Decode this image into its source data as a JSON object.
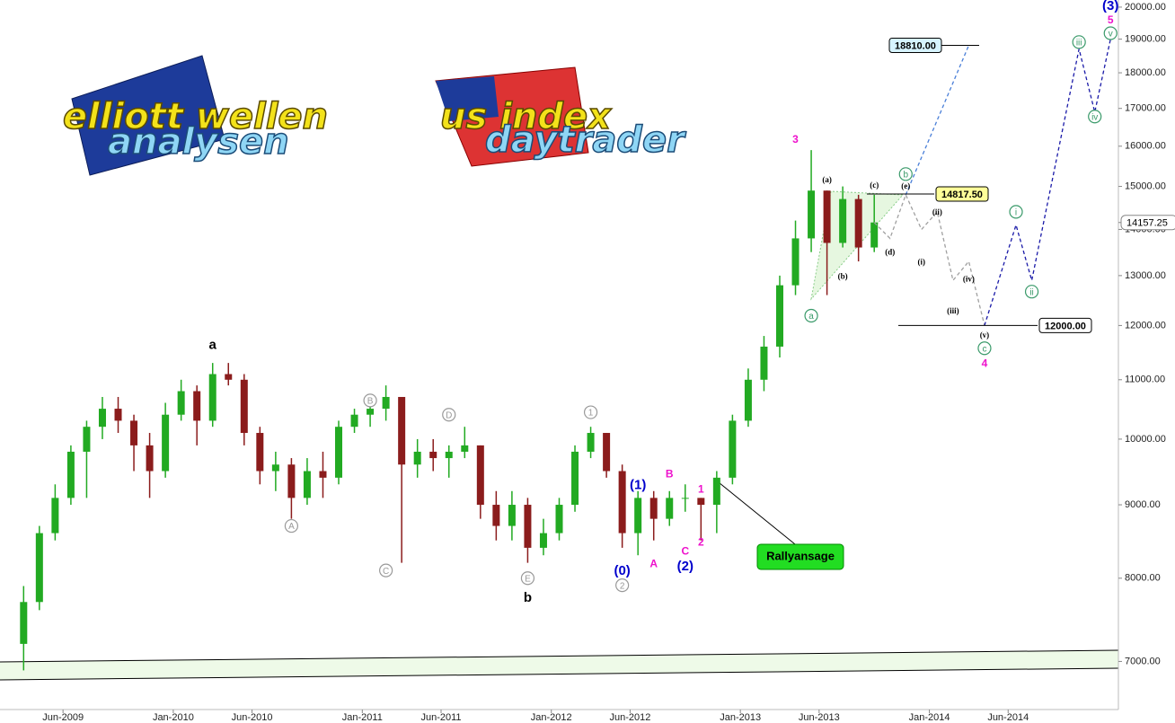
{
  "chart_data": {
    "type": "candlestick",
    "logos": [
      "elliott wellen",
      "analysen",
      "us index",
      "daytrader"
    ],
    "log_scale": true,
    "up_color": "#22aa22",
    "down_color": "#8b1c1c",
    "xlim": [
      "2009-02",
      "2015-01"
    ],
    "xticks": [
      {
        "value": "2009-06",
        "label": "Jun-2009"
      },
      {
        "value": "2010-01",
        "label": "Jan-2010"
      },
      {
        "value": "2010-06",
        "label": "Jun-2010"
      },
      {
        "value": "2011-01",
        "label": "Jan-2011"
      },
      {
        "value": "2011-06",
        "label": "Jun-2011"
      },
      {
        "value": "2012-01",
        "label": "Jan-2012"
      },
      {
        "value": "2012-06",
        "label": "Jun-2012"
      },
      {
        "value": "2013-01",
        "label": "Jan-2013"
      },
      {
        "value": "2013-06",
        "label": "Jun-2013"
      },
      {
        "value": "2014-01",
        "label": "Jan-2014"
      },
      {
        "value": "2014-06",
        "label": "Jun-2014"
      }
    ],
    "ylim": [
      6480,
      20230
    ],
    "yticks": [
      {
        "value": 7000,
        "label": "7000.00"
      },
      {
        "value": 8000,
        "label": "8000.00"
      },
      {
        "value": 9000,
        "label": "9000.00"
      },
      {
        "value": 10000,
        "label": "10000.00"
      },
      {
        "value": 11000,
        "label": "11000.00"
      },
      {
        "value": 12000,
        "label": "12000.00"
      },
      {
        "value": 13000,
        "label": "13000.00"
      },
      {
        "value": 14000,
        "label": "14000.00"
      },
      {
        "value": 15000,
        "label": "15000.00"
      },
      {
        "value": 16000,
        "label": "16000.00"
      },
      {
        "value": 17000,
        "label": "17000.00"
      },
      {
        "value": 18000,
        "label": "18000.00"
      },
      {
        "value": 19000,
        "label": "19000.00"
      },
      {
        "value": 20000,
        "label": "20000.00"
      }
    ],
    "x": [
      "2009-03",
      "2009-04",
      "2009-05",
      "2009-06",
      "2009-07",
      "2009-08",
      "2009-09",
      "2009-10",
      "2009-11",
      "2009-12",
      "2010-01",
      "2010-02",
      "2010-03",
      "2010-04",
      "2010-05",
      "2010-06",
      "2010-07",
      "2010-08",
      "2010-09",
      "2010-10",
      "2010-11",
      "2010-12",
      "2011-01",
      "2011-02",
      "2011-03",
      "2011-04",
      "2011-05",
      "2011-06",
      "2011-07",
      "2011-08",
      "2011-09",
      "2011-10",
      "2011-11",
      "2011-12",
      "2012-01",
      "2012-02",
      "2012-03",
      "2012-04",
      "2012-05",
      "2012-06",
      "2012-07",
      "2012-08",
      "2012-09",
      "2012-10",
      "2012-11",
      "2012-12",
      "2013-01",
      "2013-02",
      "2013-03",
      "2013-04",
      "2013-05",
      "2013-06",
      "2013-07",
      "2013-08",
      "2013-09"
    ],
    "open": [
      7200,
      7700,
      8600,
      9100,
      9800,
      10200,
      10500,
      10300,
      9900,
      9500,
      10400,
      10800,
      10300,
      11100,
      11000,
      10100,
      9500,
      9600,
      9100,
      9500,
      9400,
      10200,
      10400,
      10500,
      10700,
      9600,
      9800,
      9700,
      9800,
      9900,
      9000,
      8700,
      9000,
      8400,
      8600,
      9000,
      9800,
      10100,
      9500,
      8600,
      9100,
      8800,
      9100,
      9100,
      9000,
      9400,
      10300,
      11000,
      11600,
      12800,
      13800,
      14900,
      13700,
      14700,
      13600
    ],
    "high": [
      7900,
      8700,
      9300,
      9900,
      10300,
      10700,
      10700,
      10400,
      10100,
      10600,
      11000,
      10900,
      11300,
      11300,
      11100,
      10200,
      9800,
      9700,
      9700,
      9800,
      10300,
      10500,
      10600,
      10900,
      10700,
      10000,
      10000,
      9900,
      10200,
      9900,
      9200,
      9200,
      9100,
      8800,
      9100,
      9900,
      10200,
      10100,
      9600,
      9200,
      9200,
      9200,
      9300,
      9100,
      9500,
      10400,
      11200,
      11800,
      13000,
      14200,
      15900,
      14900,
      15000,
      14800,
      14800
    ],
    "low": [
      6900,
      7600,
      8500,
      9000,
      9100,
      10000,
      10100,
      9500,
      9100,
      9400,
      10300,
      9900,
      10200,
      10900,
      9900,
      9300,
      9200,
      8800,
      9000,
      9100,
      9300,
      10100,
      10200,
      10300,
      8200,
      9400,
      9500,
      9400,
      9700,
      8800,
      8500,
      8500,
      8200,
      8300,
      8500,
      8900,
      9700,
      9400,
      8400,
      8300,
      8500,
      8700,
      8900,
      8500,
      8600,
      9300,
      10200,
      10800,
      11400,
      12600,
      13500,
      12600,
      13600,
      13300,
      13500
    ],
    "close": [
      7700,
      8600,
      9100,
      9800,
      10200,
      10500,
      10300,
      9900,
      9500,
      10400,
      10800,
      10300,
      11100,
      11000,
      10100,
      9500,
      9600,
      9100,
      9500,
      9400,
      10200,
      10400,
      10500,
      10700,
      9600,
      9800,
      9700,
      9800,
      9900,
      9000,
      8700,
      9000,
      8400,
      8600,
      9000,
      9800,
      10100,
      9500,
      8600,
      9100,
      8800,
      9100,
      9100,
      9000,
      9400,
      10300,
      11000,
      11600,
      12800,
      13800,
      14900,
      13700,
      14700,
      13600,
      14157.25
    ],
    "last_price": 14157.25,
    "projections": [
      {
        "color": "#a0a0a0",
        "x": [
          "2013-09",
          "2013-10",
          "2013-11",
          "2013-12",
          "2014-01",
          "2014-02",
          "2014-03",
          "2014-04"
        ],
        "values": [
          14157.25,
          13800,
          14800,
          14000,
          14400,
          12900,
          13300,
          12000
        ]
      },
      {
        "color": "#1a1aa8",
        "x": [
          "2014-04",
          "2014-06",
          "2014-07",
          "2014-10",
          "2014-11",
          "2014-12"
        ],
        "values": [
          12000,
          14100,
          12900,
          18700,
          16900,
          19000
        ]
      },
      {
        "color": "#4a7fd8",
        "x": [
          "2013-11",
          "2014-03"
        ],
        "values": [
          14800,
          18810
        ]
      }
    ],
    "levels": [
      {
        "value": 14817.5,
        "label": "14817.50",
        "color": "#ffff99"
      },
      {
        "value": 18810,
        "label": "18810.00",
        "color": "#d6f3ff"
      },
      {
        "value": 12000,
        "label": "12000.00",
        "color": "#ffffff"
      }
    ],
    "callout": "Rallyansage",
    "annotations": [
      {
        "text": "a",
        "x": "2010-03",
        "y": 11640,
        "color": "#000000",
        "style": "bold"
      },
      {
        "text": "A",
        "x": "2010-08",
        "y": 8700,
        "color": "#999999",
        "style": "circled"
      },
      {
        "text": "B",
        "x": "2011-01",
        "y": 10640,
        "color": "#999999",
        "style": "circled"
      },
      {
        "text": "C",
        "x": "2011-02",
        "y": 8100,
        "color": "#999999",
        "style": "circled"
      },
      {
        "text": "D",
        "x": "2011-06",
        "y": 10400,
        "color": "#999999",
        "style": "circled"
      },
      {
        "text": "E",
        "x": "2011-11",
        "y": 8000,
        "color": "#999999",
        "style": "circled"
      },
      {
        "text": "b",
        "x": "2011-11",
        "y": 7760,
        "color": "#000000",
        "style": "bold"
      },
      {
        "text": "1",
        "x": "2012-03",
        "y": 10440,
        "color": "#999999",
        "style": "circled"
      },
      {
        "text": "2",
        "x": "2012-05",
        "y": 7910,
        "color": "#999999",
        "style": "circled"
      },
      {
        "text": "(0)",
        "x": "2012-05",
        "y": 8100,
        "color": "#0000cc",
        "style": "bold"
      },
      {
        "text": "(1)",
        "x": "2012-06",
        "y": 9300,
        "color": "#0000cc",
        "style": "bold"
      },
      {
        "text": "A",
        "x": "2012-07",
        "y": 8190,
        "color": "#ee11cc",
        "style": "plain"
      },
      {
        "text": "B",
        "x": "2012-08",
        "y": 9460,
        "color": "#ee11cc",
        "style": "plain"
      },
      {
        "text": "C",
        "x": "2012-09",
        "y": 8360,
        "color": "#ee11cc",
        "style": "plain"
      },
      {
        "text": "(2)",
        "x": "2012-09",
        "y": 8160,
        "color": "#0000cc",
        "style": "bold"
      },
      {
        "text": "1",
        "x": "2012-10",
        "y": 9230,
        "color": "#ee11cc",
        "style": "plain"
      },
      {
        "text": "2",
        "x": "2012-10",
        "y": 8480,
        "color": "#ee11cc",
        "style": "plain"
      },
      {
        "text": "3",
        "x": "2013-04",
        "y": 16180,
        "color": "#ee11cc",
        "style": "plain"
      },
      {
        "text": "a",
        "x": "2013-05",
        "y": 12190,
        "color": "#3a9a6a",
        "style": "circled"
      },
      {
        "text": "(a)",
        "x": "2013-06",
        "y": 15170,
        "color": "#000000",
        "style": "small"
      },
      {
        "text": "(b)",
        "x": "2013-07",
        "y": 12990,
        "color": "#000000",
        "style": "small"
      },
      {
        "text": "(c)",
        "x": "2013-09",
        "y": 15040,
        "color": "#000000",
        "style": "small"
      },
      {
        "text": "(d)",
        "x": "2013-10",
        "y": 13500,
        "color": "#000000",
        "style": "small"
      },
      {
        "text": "(e)",
        "x": "2013-11",
        "y": 15010,
        "color": "#000000",
        "style": "small"
      },
      {
        "text": "b",
        "x": "2013-11",
        "y": 15300,
        "color": "#3a9a6a",
        "style": "circled"
      },
      {
        "text": "(i)",
        "x": "2013-12",
        "y": 13290,
        "color": "#000000",
        "style": "small"
      },
      {
        "text": "(ii)",
        "x": "2014-01",
        "y": 14400,
        "color": "#000000",
        "style": "small"
      },
      {
        "text": "(iii)",
        "x": "2014-02",
        "y": 12290,
        "color": "#000000",
        "style": "small"
      },
      {
        "text": "(iv)",
        "x": "2014-03",
        "y": 12930,
        "color": "#000000",
        "style": "small"
      },
      {
        "text": "(v)",
        "x": "2014-04",
        "y": 11820,
        "color": "#000000",
        "style": "small"
      },
      {
        "text": "c",
        "x": "2014-04",
        "y": 11570,
        "color": "#3a9a6a",
        "style": "circled"
      },
      {
        "text": "4",
        "x": "2014-04",
        "y": 11300,
        "color": "#ee11cc",
        "style": "plain"
      },
      {
        "text": "i",
        "x": "2014-06",
        "y": 14400,
        "color": "#3a9a6a",
        "style": "circled"
      },
      {
        "text": "ii",
        "x": "2014-07",
        "y": 12670,
        "color": "#3a9a6a",
        "style": "circled"
      },
      {
        "text": "iii",
        "x": "2014-10",
        "y": 18910,
        "color": "#3a9a6a",
        "style": "circled"
      },
      {
        "text": "iv",
        "x": "2014-11",
        "y": 16780,
        "color": "#3a9a6a",
        "style": "circled"
      },
      {
        "text": "v",
        "x": "2014-12",
        "y": 19180,
        "color": "#3a9a6a",
        "style": "circled"
      },
      {
        "text": "5",
        "x": "2014-12",
        "y": 19600,
        "color": "#ee11cc",
        "style": "plain"
      },
      {
        "text": "(3)",
        "x": "2014-12",
        "y": 20050,
        "color": "#0000cc",
        "style": "bold"
      }
    ]
  }
}
